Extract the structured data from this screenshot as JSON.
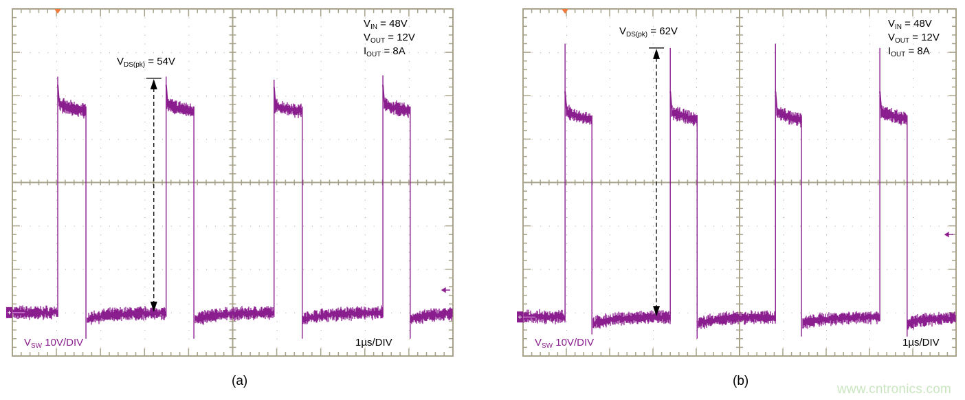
{
  "colors": {
    "trace": "#8b1e8f",
    "grid": "#a9a38b",
    "trigger_marker": "#f07a3c",
    "annotation": "#000000",
    "watermark": "#c9e6c0"
  },
  "chart_data": [
    {
      "type": "line",
      "caption": "(a)",
      "xlim": [
        0,
        10
      ],
      "x_unit": "µs",
      "x_divisions": 10,
      "ylim": [
        -10,
        70
      ],
      "y_unit": "V",
      "y_divisions": 8,
      "grid": true,
      "channel_label": {
        "main": "V",
        "sub": "SW",
        "rest": " 10V/DIV"
      },
      "timebase_label": "1µs/DIV",
      "conditions": [
        {
          "main": "V",
          "sub": "IN",
          "rest": " = 48V"
        },
        {
          "main": "V",
          "sub": "OUT",
          "rest": " = 12V"
        },
        {
          "main": "I",
          "sub": "OUT",
          "rest": " = 8A"
        }
      ],
      "annotation": {
        "main": "V",
        "sub": "DS(pk)",
        "rest": " = 54V",
        "value": 54,
        "x": 3.21
      },
      "trigger_time": 1.03,
      "trigger_level": 5.2,
      "series": [
        {
          "name": "VSW",
          "pulses": [
            {
              "rise": 1.03,
              "fall": 1.67,
              "peak": 54.4,
              "plateau_start": 48.5,
              "plateau_end": 46.5,
              "undershoot": -6.0
            },
            {
              "rise": 3.49,
              "fall": 4.12,
              "peak": 54.4,
              "plateau_start": 48.5,
              "plateau_end": 46.5,
              "undershoot": -6.0
            },
            {
              "rise": 5.94,
              "fall": 6.58,
              "peak": 53.7,
              "plateau_start": 48.0,
              "plateau_end": 46.5,
              "undershoot": -6.0
            },
            {
              "rise": 8.41,
              "fall": 9.03,
              "peak": 54.7,
              "plateau_start": 48.5,
              "plateau_end": 46.5,
              "undershoot": -6.0
            }
          ],
          "baseline": 0
        }
      ]
    },
    {
      "type": "line",
      "caption": "(b)",
      "xlim": [
        0,
        10
      ],
      "x_unit": "µs",
      "x_divisions": 10,
      "ylim": [
        -9,
        71
      ],
      "y_unit": "V",
      "y_divisions": 8,
      "grid": true,
      "channel_label": {
        "main": "V",
        "sub": "SW",
        "rest": " 10V/DIV"
      },
      "timebase_label": "1µs/DIV",
      "conditions": [
        {
          "main": "V",
          "sub": "IN",
          "rest": " = 48V"
        },
        {
          "main": "V",
          "sub": "OUT",
          "rest": " = 12V"
        },
        {
          "main": "I",
          "sub": "OUT",
          "rest": " = 8A"
        }
      ],
      "annotation": {
        "main": "V",
        "sub": "DS(pk)",
        "rest": " = 62V",
        "value": 62,
        "x": 3.08
      },
      "trigger_time": 0.97,
      "trigger_level": 19.0,
      "series": [
        {
          "name": "VSW",
          "pulses": [
            {
              "rise": 0.97,
              "fall": 1.59,
              "peak": 63,
              "plateau_start": 48.0,
              "plateau_end": 45.5,
              "undershoot": -4.0
            },
            {
              "rise": 3.4,
              "fall": 4.02,
              "peak": 62,
              "plateau_start": 48.0,
              "plateau_end": 45.5,
              "undershoot": -5.0
            },
            {
              "rise": 5.83,
              "fall": 6.43,
              "peak": 63,
              "plateau_start": 48.0,
              "plateau_end": 45.5,
              "undershoot": -4.5
            },
            {
              "rise": 8.24,
              "fall": 8.87,
              "peak": 62,
              "plateau_start": 48.0,
              "plateau_end": 45.5,
              "undershoot": -4.5
            }
          ],
          "baseline": 0
        }
      ]
    }
  ],
  "watermark": "www.cntronics.com"
}
